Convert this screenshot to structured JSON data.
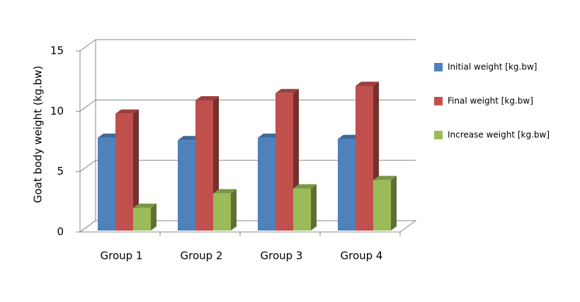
{
  "chart_data": {
    "type": "bar3d",
    "y_label": "Goat body weight (kg.bw)",
    "categories": [
      "Group 1",
      "Group 2",
      "Group 3",
      "Group 4"
    ],
    "series": [
      {
        "name": "Initial weight [kg.bw]",
        "color": "#4f81bd",
        "values": [
          7.8,
          7.6,
          7.8,
          7.7
        ]
      },
      {
        "name": "Final weight  [kg.bw]",
        "color": "#c0504d",
        "values": [
          9.8,
          10.9,
          11.5,
          12.1
        ]
      },
      {
        "name": "Increase weight [kg.bw]",
        "color": "#9bbb59",
        "values": [
          2.0,
          3.2,
          3.6,
          4.3
        ]
      }
    ],
    "ylim": [
      0,
      15
    ],
    "yticks": [
      0,
      5,
      10,
      15
    ],
    "grid": true,
    "legend": "right"
  }
}
